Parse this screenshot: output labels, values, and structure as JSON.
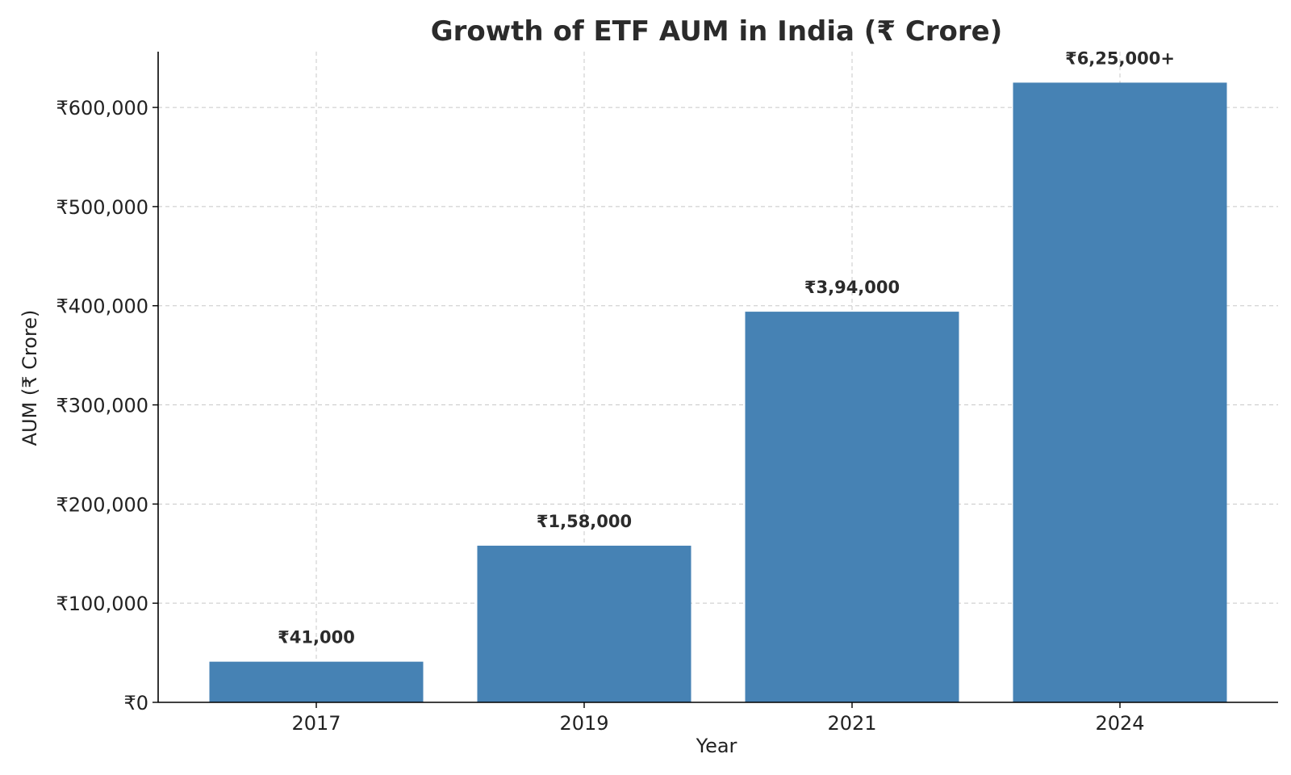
{
  "chart_data": {
    "type": "bar",
    "title": "Growth of ETF AUM in India (₹ Crore)",
    "xlabel": "Year",
    "ylabel": "AUM (₹ Crore)",
    "categories": [
      "2017",
      "2019",
      "2021",
      "2024"
    ],
    "values": [
      41000,
      158000,
      394000,
      625000
    ],
    "data_labels": [
      "₹41,000",
      "₹1,58,000",
      "₹3,94,000",
      "₹6,25,000+"
    ],
    "y_ticks": [
      0,
      100000,
      200000,
      300000,
      400000,
      500000,
      600000
    ],
    "y_tick_labels": [
      "₹0",
      "₹100,000",
      "₹200,000",
      "₹300,000",
      "₹400,000",
      "₹500,000",
      "₹600,000"
    ],
    "ylim": [
      0,
      656250
    ],
    "grid": true,
    "bar_color": "#4682b4"
  }
}
